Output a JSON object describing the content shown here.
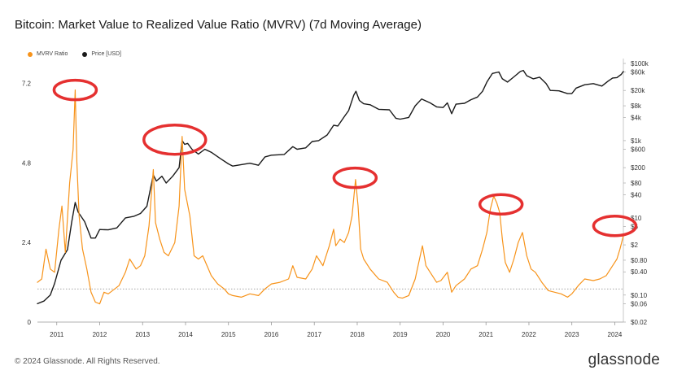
{
  "title": "Bitcoin: Market Value to Realized Value Ratio (MVRV) (7d Moving Average)",
  "legend": [
    {
      "label": "MVRV Ratio",
      "color": "#f7931a"
    },
    {
      "label": "Price [USD]",
      "color": "#1a1a1a"
    }
  ],
  "footer": "© 2024 Glassnode. All Rights Reserved.",
  "brand": "glassnode",
  "chart_data": {
    "type": "line",
    "title": "Bitcoin: Market Value to Realized Value Ratio (MVRV) (7d Moving Average)",
    "x_ticks": [
      "2011",
      "2012",
      "2013",
      "2014",
      "2015",
      "2016",
      "2017",
      "2018",
      "2019",
      "2020",
      "2021",
      "2022",
      "2023",
      "2024"
    ],
    "x_range": [
      2010.55,
      2024.2
    ],
    "y_left": {
      "ticks": [
        "0",
        "2.4",
        "4.8",
        "7.2"
      ],
      "range": [
        0,
        7.8
      ]
    },
    "y_right": {
      "ticks": [
        "$100k",
        "$60k",
        "$20k",
        "$8k",
        "$4k",
        "$1k",
        "$600",
        "$200",
        "$80",
        "$40",
        "$10",
        "$6",
        "$2",
        "$0.80",
        "$0.40",
        "$0.10",
        "$0.06",
        "$0.02"
      ],
      "scale": "log",
      "range": [
        0.02,
        100000
      ]
    },
    "reference_line": {
      "value": 1.0,
      "style": "dotted"
    },
    "series": [
      {
        "name": "MVRV Ratio",
        "axis": "left",
        "color": "#f7931a",
        "points": [
          [
            2010.55,
            1.2
          ],
          [
            2010.65,
            1.3
          ],
          [
            2010.75,
            2.2
          ],
          [
            2010.85,
            1.6
          ],
          [
            2010.95,
            1.5
          ],
          [
            2011.05,
            2.8
          ],
          [
            2011.12,
            3.5
          ],
          [
            2011.2,
            2.1
          ],
          [
            2011.3,
            4.2
          ],
          [
            2011.38,
            5.2
          ],
          [
            2011.43,
            7.0
          ],
          [
            2011.47,
            4.8
          ],
          [
            2011.52,
            3.2
          ],
          [
            2011.6,
            2.2
          ],
          [
            2011.7,
            1.6
          ],
          [
            2011.8,
            0.9
          ],
          [
            2011.9,
            0.6
          ],
          [
            2012.0,
            0.55
          ],
          [
            2012.1,
            0.9
          ],
          [
            2012.2,
            0.85
          ],
          [
            2012.3,
            0.95
          ],
          [
            2012.45,
            1.1
          ],
          [
            2012.6,
            1.5
          ],
          [
            2012.7,
            1.9
          ],
          [
            2012.85,
            1.6
          ],
          [
            2012.95,
            1.7
          ],
          [
            2013.05,
            2.0
          ],
          [
            2013.15,
            2.9
          ],
          [
            2013.25,
            4.6
          ],
          [
            2013.3,
            3.0
          ],
          [
            2013.4,
            2.5
          ],
          [
            2013.5,
            2.1
          ],
          [
            2013.6,
            2.0
          ],
          [
            2013.75,
            2.4
          ],
          [
            2013.85,
            3.5
          ],
          [
            2013.92,
            5.6
          ],
          [
            2013.98,
            4.0
          ],
          [
            2014.1,
            3.2
          ],
          [
            2014.2,
            2.0
          ],
          [
            2014.3,
            1.9
          ],
          [
            2014.4,
            2.0
          ],
          [
            2014.5,
            1.7
          ],
          [
            2014.6,
            1.4
          ],
          [
            2014.75,
            1.15
          ],
          [
            2014.9,
            1.0
          ],
          [
            2015.0,
            0.85
          ],
          [
            2015.1,
            0.8
          ],
          [
            2015.3,
            0.75
          ],
          [
            2015.5,
            0.85
          ],
          [
            2015.7,
            0.8
          ],
          [
            2015.85,
            1.0
          ],
          [
            2016.0,
            1.15
          ],
          [
            2016.2,
            1.2
          ],
          [
            2016.4,
            1.3
          ],
          [
            2016.5,
            1.7
          ],
          [
            2016.6,
            1.35
          ],
          [
            2016.8,
            1.3
          ],
          [
            2016.95,
            1.6
          ],
          [
            2017.05,
            2.0
          ],
          [
            2017.2,
            1.7
          ],
          [
            2017.35,
            2.3
          ],
          [
            2017.45,
            2.8
          ],
          [
            2017.5,
            2.3
          ],
          [
            2017.6,
            2.5
          ],
          [
            2017.7,
            2.4
          ],
          [
            2017.8,
            2.7
          ],
          [
            2017.88,
            3.2
          ],
          [
            2017.96,
            4.3
          ],
          [
            2018.02,
            3.5
          ],
          [
            2018.08,
            2.2
          ],
          [
            2018.15,
            1.9
          ],
          [
            2018.3,
            1.6
          ],
          [
            2018.5,
            1.3
          ],
          [
            2018.7,
            1.2
          ],
          [
            2018.85,
            0.9
          ],
          [
            2018.95,
            0.75
          ],
          [
            2019.05,
            0.72
          ],
          [
            2019.2,
            0.8
          ],
          [
            2019.35,
            1.3
          ],
          [
            2019.45,
            1.9
          ],
          [
            2019.52,
            2.3
          ],
          [
            2019.6,
            1.7
          ],
          [
            2019.7,
            1.5
          ],
          [
            2019.85,
            1.2
          ],
          [
            2019.95,
            1.25
          ],
          [
            2020.1,
            1.5
          ],
          [
            2020.2,
            0.9
          ],
          [
            2020.3,
            1.1
          ],
          [
            2020.5,
            1.3
          ],
          [
            2020.65,
            1.6
          ],
          [
            2020.8,
            1.7
          ],
          [
            2020.92,
            2.2
          ],
          [
            2021.02,
            2.7
          ],
          [
            2021.1,
            3.4
          ],
          [
            2021.18,
            3.8
          ],
          [
            2021.25,
            3.6
          ],
          [
            2021.32,
            3.3
          ],
          [
            2021.38,
            2.5
          ],
          [
            2021.45,
            1.8
          ],
          [
            2021.55,
            1.5
          ],
          [
            2021.65,
            1.9
          ],
          [
            2021.75,
            2.4
          ],
          [
            2021.85,
            2.7
          ],
          [
            2021.95,
            2.0
          ],
          [
            2022.05,
            1.6
          ],
          [
            2022.15,
            1.5
          ],
          [
            2022.3,
            1.2
          ],
          [
            2022.45,
            0.95
          ],
          [
            2022.6,
            0.9
          ],
          [
            2022.75,
            0.85
          ],
          [
            2022.9,
            0.75
          ],
          [
            2023.0,
            0.85
          ],
          [
            2023.15,
            1.1
          ],
          [
            2023.3,
            1.3
          ],
          [
            2023.5,
            1.25
          ],
          [
            2023.65,
            1.3
          ],
          [
            2023.8,
            1.4
          ],
          [
            2023.95,
            1.7
          ],
          [
            2024.05,
            1.9
          ],
          [
            2024.12,
            2.2
          ],
          [
            2024.2,
            2.6
          ]
        ]
      },
      {
        "name": "Price [USD]",
        "axis": "right",
        "color": "#1a1a1a",
        "points": [
          [
            2010.55,
            0.06
          ],
          [
            2010.7,
            0.07
          ],
          [
            2010.85,
            0.1
          ],
          [
            2010.95,
            0.2
          ],
          [
            2011.1,
            0.8
          ],
          [
            2011.25,
            1.5
          ],
          [
            2011.35,
            8
          ],
          [
            2011.43,
            25
          ],
          [
            2011.5,
            14
          ],
          [
            2011.65,
            8
          ],
          [
            2011.8,
            3
          ],
          [
            2011.9,
            3
          ],
          [
            2012.0,
            5
          ],
          [
            2012.2,
            4.9
          ],
          [
            2012.4,
            5.5
          ],
          [
            2012.6,
            10
          ],
          [
            2012.8,
            11
          ],
          [
            2012.95,
            13
          ],
          [
            2013.1,
            20
          ],
          [
            2013.25,
            130
          ],
          [
            2013.32,
            90
          ],
          [
            2013.45,
            120
          ],
          [
            2013.55,
            80
          ],
          [
            2013.7,
            120
          ],
          [
            2013.85,
            200
          ],
          [
            2013.92,
            1000
          ],
          [
            2013.98,
            800
          ],
          [
            2014.05,
            850
          ],
          [
            2014.15,
            600
          ],
          [
            2014.3,
            450
          ],
          [
            2014.45,
            600
          ],
          [
            2014.6,
            500
          ],
          [
            2014.8,
            350
          ],
          [
            2015.0,
            250
          ],
          [
            2015.1,
            220
          ],
          [
            2015.3,
            240
          ],
          [
            2015.5,
            260
          ],
          [
            2015.7,
            230
          ],
          [
            2015.85,
            380
          ],
          [
            2016.0,
            420
          ],
          [
            2016.3,
            440
          ],
          [
            2016.5,
            700
          ],
          [
            2016.6,
            600
          ],
          [
            2016.8,
            650
          ],
          [
            2016.95,
            950
          ],
          [
            2017.1,
            1000
          ],
          [
            2017.3,
            1400
          ],
          [
            2017.45,
            2500
          ],
          [
            2017.55,
            2400
          ],
          [
            2017.7,
            4200
          ],
          [
            2017.8,
            6000
          ],
          [
            2017.92,
            15000
          ],
          [
            2017.97,
            19000
          ],
          [
            2018.05,
            11000
          ],
          [
            2018.15,
            9000
          ],
          [
            2018.3,
            8500
          ],
          [
            2018.5,
            6500
          ],
          [
            2018.75,
            6300
          ],
          [
            2018.9,
            3800
          ],
          [
            2019.0,
            3600
          ],
          [
            2019.2,
            4000
          ],
          [
            2019.35,
            8000
          ],
          [
            2019.5,
            12000
          ],
          [
            2019.7,
            9500
          ],
          [
            2019.85,
            7500
          ],
          [
            2020.0,
            7200
          ],
          [
            2020.1,
            9500
          ],
          [
            2020.2,
            5000
          ],
          [
            2020.3,
            8800
          ],
          [
            2020.5,
            9300
          ],
          [
            2020.65,
            11500
          ],
          [
            2020.8,
            13500
          ],
          [
            2020.92,
            19000
          ],
          [
            2021.02,
            33000
          ],
          [
            2021.15,
            55000
          ],
          [
            2021.3,
            60000
          ],
          [
            2021.38,
            40000
          ],
          [
            2021.5,
            33000
          ],
          [
            2021.65,
            45000
          ],
          [
            2021.8,
            62000
          ],
          [
            2021.87,
            66000
          ],
          [
            2021.95,
            48000
          ],
          [
            2022.1,
            40000
          ],
          [
            2022.25,
            44000
          ],
          [
            2022.4,
            30000
          ],
          [
            2022.5,
            20000
          ],
          [
            2022.7,
            19500
          ],
          [
            2022.9,
            16500
          ],
          [
            2023.0,
            16600
          ],
          [
            2023.1,
            23000
          ],
          [
            2023.3,
            28000
          ],
          [
            2023.5,
            30000
          ],
          [
            2023.7,
            26000
          ],
          [
            2023.85,
            35000
          ],
          [
            2023.95,
            42000
          ],
          [
            2024.05,
            43000
          ],
          [
            2024.15,
            52000
          ],
          [
            2024.2,
            62000
          ]
        ]
      }
    ],
    "annotations": [
      {
        "shape": "ellipse",
        "color": "#e53030",
        "at_x": 2011.43,
        "at_left_value": 7.0
      },
      {
        "shape": "ellipse",
        "color": "#e53030",
        "at_x": 2013.75,
        "at_left_value": 5.5
      },
      {
        "shape": "ellipse",
        "color": "#e53030",
        "at_x": 2017.95,
        "at_left_value": 4.35
      },
      {
        "shape": "ellipse",
        "color": "#e53030",
        "at_x": 2021.35,
        "at_left_value": 3.55
      },
      {
        "shape": "ellipse",
        "color": "#e53030",
        "at_x": 2024.0,
        "at_left_value": 2.9
      }
    ]
  }
}
